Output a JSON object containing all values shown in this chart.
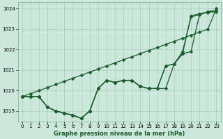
{
  "title": "Graphe pression niveau de la mer (hPa)",
  "bg_color": "#cce8dc",
  "grid_color": "#aaccbb",
  "line_color": "#1a5c2a",
  "xlim": [
    -0.5,
    23.5
  ],
  "ylim": [
    1018.5,
    1024.3
  ],
  "yticks": [
    1019,
    1020,
    1021,
    1022,
    1023,
    1024
  ],
  "xticks": [
    0,
    1,
    2,
    3,
    4,
    5,
    6,
    7,
    8,
    9,
    10,
    11,
    12,
    13,
    14,
    15,
    16,
    17,
    18,
    19,
    20,
    21,
    22,
    23
  ],
  "series": [
    [
      1019.7,
      1019.7,
      1019.7,
      1019.2,
      1019.0,
      1018.9,
      1018.8,
      1018.65,
      1019.0,
      1020.1,
      1020.5,
      1020.4,
      1020.5,
      1020.5,
      1020.2,
      1020.1,
      1020.1,
      1020.1,
      1021.3,
      1021.8,
      1023.65,
      1023.75,
      1023.8,
      1023.85
    ],
    [
      1019.7,
      1019.7,
      1019.7,
      1019.2,
      1019.0,
      1018.9,
      1018.8,
      1018.65,
      1019.0,
      1020.1,
      1020.5,
      1020.4,
      1020.5,
      1020.5,
      1020.2,
      1020.1,
      1020.1,
      1021.2,
      1021.3,
      1021.8,
      1021.9,
      1023.7,
      1023.85,
      1023.9
    ],
    [
      1019.7,
      1019.7,
      1019.7,
      1019.2,
      1019.0,
      1018.9,
      1018.8,
      1018.65,
      1019.0,
      1020.1,
      1020.5,
      1020.4,
      1020.5,
      1020.5,
      1020.2,
      1020.1,
      1020.1,
      1021.2,
      1021.3,
      1021.9,
      1023.6,
      1023.7,
      1023.85,
      1023.9
    ],
    [
      1019.7,
      1019.85,
      1020.0,
      1020.15,
      1020.3,
      1020.45,
      1020.6,
      1020.75,
      1020.9,
      1021.05,
      1021.2,
      1021.35,
      1021.5,
      1021.65,
      1021.8,
      1021.95,
      1022.1,
      1022.25,
      1022.4,
      1022.55,
      1022.7,
      1022.85,
      1023.0,
      1024.0
    ]
  ],
  "marker": "D",
  "markersize": 2.5,
  "linewidth": 0.9,
  "title_fontsize": 6.0,
  "tick_fontsize": 5.0
}
